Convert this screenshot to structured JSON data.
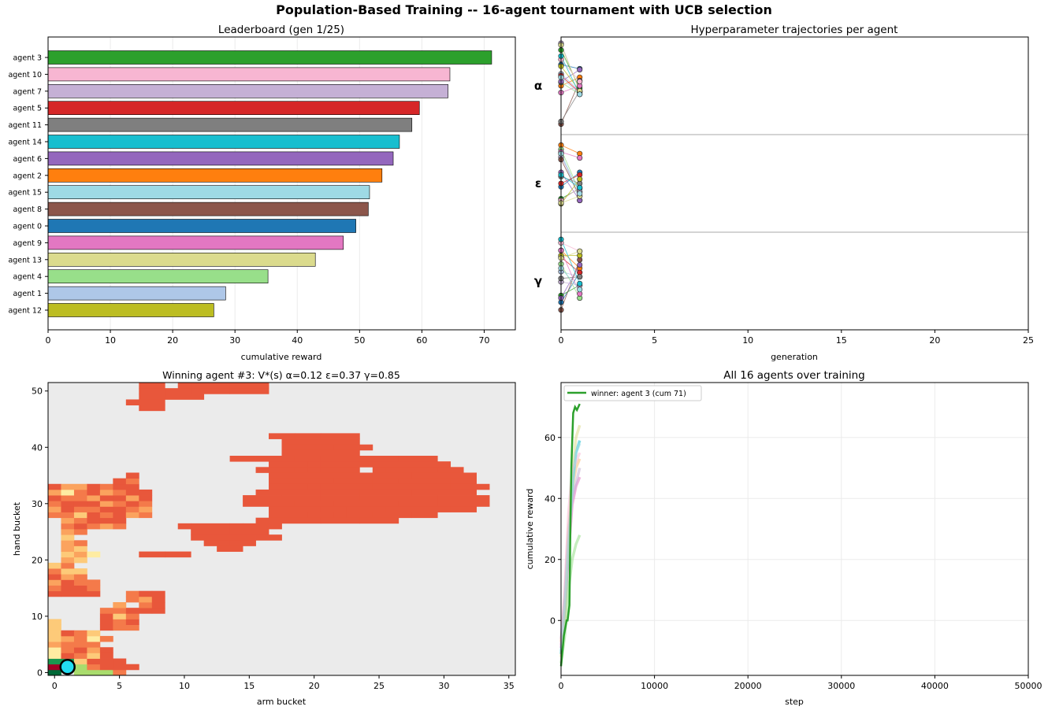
{
  "figure": {
    "suptitle": "Population-Based Training -- 16-agent tournament with UCB selection"
  },
  "palette": {
    "tab20": [
      "#1f77b4",
      "#aec7e8",
      "#ff7f0e",
      "#ffbb78",
      "#2ca02c",
      "#98df8a",
      "#d62728",
      "#ff9896",
      "#9467bd",
      "#c5b0d5",
      "#8c564b",
      "#c49c94",
      "#e377c2",
      "#f7b6d2",
      "#7f7f7f",
      "#c7c7c7",
      "#bcbd22",
      "#dbdb8d",
      "#17becf",
      "#9edae5"
    ],
    "agent_colors": {
      "agent 0": "#1f77b4",
      "agent 1": "#aec7e8",
      "agent 2": "#ff7f0e",
      "agent 3": "#2ca02c",
      "agent 4": "#98df8a",
      "agent 5": "#d62728",
      "agent 6": "#9467bd",
      "agent 7": "#c5b0d5",
      "agent 8": "#8c564b",
      "agent 9": "#e377c2",
      "agent 10": "#f7b6d2",
      "agent 11": "#7f7f7f",
      "agent 12": "#bcbd22",
      "agent 13": "#dbdb8d",
      "agent 14": "#17becf",
      "agent 15": "#9edae5"
    },
    "heat_bg": "#ebebeb",
    "heat_levels": [
      "#a50026",
      "#e8573b",
      "#f47a4a",
      "#fba35e",
      "#fdca79",
      "#feeca2",
      "#d3ec87",
      "#a9dc6d",
      "#1a9850",
      "#006837"
    ],
    "marker_fill": "#22ddf2"
  },
  "chart_data": [
    {
      "type": "bar",
      "orientation": "horizontal",
      "title": "Leaderboard  (gen 1/25)",
      "xlabel": "cumulative reward",
      "xlim": [
        0,
        75
      ],
      "xticks": [
        0,
        10,
        20,
        30,
        40,
        50,
        60,
        70
      ],
      "grid": "x",
      "categories": [
        "agent 3",
        "agent 10",
        "agent 7",
        "agent 5",
        "agent 11",
        "agent 14",
        "agent 6",
        "agent 2",
        "agent 15",
        "agent 8",
        "agent 0",
        "agent 9",
        "agent 13",
        "agent 4",
        "agent 1",
        "agent 12"
      ],
      "values": [
        71.2,
        64.5,
        64.2,
        59.6,
        58.4,
        56.4,
        55.4,
        53.6,
        51.6,
        51.4,
        49.4,
        47.4,
        42.9,
        35.3,
        28.5,
        26.6
      ]
    },
    {
      "type": "scatter",
      "title": "Hyperparameter trajectories per agent",
      "xlabel": "generation",
      "xlim": [
        0,
        25
      ],
      "xticks": [
        0,
        5,
        10,
        15,
        20,
        25
      ],
      "bands": [
        {
          "label": "α",
          "gen0": [
            0.25,
            0.36,
            0.5,
            0.08,
            0.46,
            0.38,
            0.45,
            0.0,
            0.95,
            0.58,
            0.19,
            0.92,
            0.27,
            0.02,
            0.15,
            0.4
          ],
          "gen1": [
            0.3,
            0.56,
            0.4,
            0.53,
            0.6,
            0.58,
            0.31,
            0.57,
            0.44,
            0.5,
            0.45,
            0.56,
            0.56,
            0.56,
            0.6,
            0.6
          ]
        },
        {
          "label": "ε",
          "gen0": [
            0.54,
            0.15,
            0.05,
            0.68,
            0.1,
            0.5,
            0.37,
            0.19,
            0.22,
            0.13,
            0.7,
            0.42,
            0.74,
            0.73,
            0.4,
            0.15
          ],
          "gen1": [
            0.37,
            0.7,
            0.15,
            0.56,
            0.6,
            0.4,
            0.7,
            0.6,
            0.65,
            0.2,
            0.55,
            0.5,
            0.45,
            0.65,
            0.55,
            0.62
          ]
        },
        {
          "label": "γ",
          "gen0": [
            0.75,
            0.39,
            0.14,
            0.67,
            0.3,
            0.22,
            0.7,
            0.51,
            0.84,
            0.14,
            0.05,
            0.47,
            0.2,
            0.23,
            0.01,
            0.35
          ],
          "gen1": [
            0.4,
            0.45,
            0.35,
            0.55,
            0.7,
            0.4,
            0.31,
            0.55,
            0.25,
            0.65,
            0.15,
            0.45,
            0.2,
            0.15,
            0.53,
            0.6
          ]
        }
      ]
    },
    {
      "type": "heatmap",
      "title": "Winning agent #3: V*(s)   α=0.12 ε=0.37 γ=0.85",
      "xlabel": "arm bucket",
      "ylabel": "hand bucket",
      "xticks": [
        0,
        5,
        10,
        15,
        20,
        25,
        30,
        35
      ],
      "yticks": [
        0,
        10,
        20,
        30,
        40,
        50
      ],
      "grid_cols": 36,
      "grid_rows": 52,
      "marker": {
        "x": 1,
        "y": 1
      },
      "level_rows": [
        "0:1:9,2:5:7,5:6:2",
        "0:1:0,1:3:7,3:4:2,4:5:1,5:7:1",
        "0:2:8,2:3:4,3:5:1,5:6:1",
        "0:1:5,1:2:1,2:3:2,3:4:4,4:5:1",
        "0:1:5,1:2:2,2:3:1,3:4:3,4:5:1",
        "0:1:3,1:3:2,3:4:2",
        "0:1:4,1:2:3,2:3:2,3:4:5,4:5:2",
        "0:1:4,1:2:1,2:3:2,3:4:4",
        "0:1:4,4:5:1,5:7:2",
        "0:1:4,4:5:1,5:6:2,6:7:1",
        "4:5:1,5:6:4,6:7:2",
        "4:5:2,5:6:2,6:7:1,7:8:1,8:9:1",
        "5:6:3,7:8:2,8:9:1",
        "6:7:2,7:8:3,8:9:1",
        "0:1:1,1:4:1,6:7:2,7:8:1,8:9:1",
        "0:1:2,1:3:1,3:4:2",
        "0:1:3,1:2:1,2:4:2",
        "0:1:1,1:2:3,2:3:2",
        "0:1:2,1:3:4",
        "0:1:4,1:2:2",
        "1:2:3,2:3:4",
        "1:2:4,2:3:3,3:4:5",
        "1:2:3,2:3:4",
        "1:2:3,2:3:2",
        "1:2:4",
        "1:2:3,2:3:2",
        "1:2:2,2:3:1,3:4:2,4:5:3,5:6:2",
        "1:2:3,2:3:2,3:4:1,4:6:1",
        "0:1:2,1:2:2,2:3:4,3:4:1,4:5:2,5:6:1,6:7:3,7:8:2",
        "0:1:3,1:2:1,2:3:2,3:4:2,4:5:1,5:6:1,6:7:2,7:8:3",
        "0:1:2,1:2:1,2:3:1,3:4:1,4:5:3,5:6:2,6:7:1,7:8:2",
        "0:1:1,1:3:2,3:4:3,4:5:1,5:6:1,6:7:3,7:8:1",
        "0:1:3,1:2:5,2:3:2,3:4:1,4:5:3,5:6:2,6:7:1,7:8:1",
        "0:1:1,1:3:3,3:4:1,4:5:2,5:7:1",
        "5:6:1,6:7:2",
        "6:7:1"
      ],
      "plateau_runs": [
        "17:19:1,19:21:1,21:24:1",
        "18:24:1",
        "18:22:1,22:24:1,24:25:1",
        "18:24:1",
        "14:16:1,16:17:1,17:18:1,18:19:1,19:21:1,21:27:1,27:30:1",
        "17:20:1,20:21:1,21:25:1,25:31:1",
        "16:17:1,17:19:1,19:20:1,20:21:1,21:24:1,25:26:1,26:30:1,30:32:1",
        "17:25:1,25:28:1,28:33:1",
        "17:22:1,22:25:1,25:27:1,27:31:1,31:33:1",
        "17:20:1,20:21:1,21:25:1,25:31:1,31:34:1",
        "16:18:1,18:21:1,21:24:1,24:28:1,28:33:1",
        "15:18:1,18:21:1,21:24:1,24:30:1,30:34:1",
        "15:19:1,19:22:1,22:27:1,27:30:1,30:34:1",
        "17:21:1,21:23:1,23:26:1,26:31:1,31:33:1",
        "17:20:1,20:22:1,22:23:1,23:25:1,25:28:1,28:30:1",
        "16:18:1,18:21:1,21:24:1,24:27:1",
        "10:11:1,11:14:1,14:15:1,15:17:1,17:18:1",
        "11:14:1,14:17:1",
        "11:16:1,16:18:1",
        "12:14:1,14:16:1",
        "13:15:1",
        "7:9:1,9:11:1"
      ],
      "plateau_top_rows": [
        "7:9:1",
        "6:7:1,7:9:1",
        "7:9:1,9:12:1",
        "7:9:1,9:11:1,11:14:1,14:17:1",
        "7:9:1,10:11:1,11:14:1,14:17:1"
      ]
    },
    {
      "type": "line",
      "title": "All 16 agents over training",
      "xlabel": "step",
      "ylabel": "cumulative reward",
      "xlim": [
        0,
        50000
      ],
      "ylim": [
        -18,
        78
      ],
      "xticks": [
        0,
        10000,
        20000,
        30000,
        40000,
        50000
      ],
      "yticks": [
        0,
        20,
        40,
        60
      ],
      "legend": {
        "label": "winner: agent 3 (cum 71)",
        "placement": "top-left"
      },
      "series": [
        {
          "name": "winner: agent 3 (cum 71)",
          "x": [
            0,
            300,
            600,
            700,
            900,
            1000,
            1100,
            1300,
            1500,
            1700,
            2000
          ],
          "y": [
            -15,
            -5,
            0,
            0,
            5,
            30,
            50,
            68,
            70,
            69,
            71
          ]
        },
        {
          "x": [
            0,
            400,
            800,
            1200,
            1600,
            2000
          ],
          "y": [
            -10,
            5,
            25,
            42,
            55,
            58
          ]
        },
        {
          "x": [
            0,
            400,
            800,
            1200,
            1600,
            2000
          ],
          "y": [
            -8,
            10,
            35,
            50,
            52,
            55
          ]
        },
        {
          "x": [
            0,
            400,
            800,
            1200,
            1600,
            2000
          ],
          "y": [
            -12,
            0,
            28,
            48,
            60,
            64
          ]
        },
        {
          "x": [
            0,
            400,
            800,
            1200,
            1600,
            2000
          ],
          "y": [
            -6,
            8,
            30,
            40,
            45,
            50
          ]
        },
        {
          "x": [
            0,
            400,
            800,
            1200,
            1600,
            2000
          ],
          "y": [
            -14,
            -5,
            10,
            20,
            25,
            28
          ]
        },
        {
          "x": [
            0,
            400,
            800,
            1200,
            1600,
            2000
          ],
          "y": [
            -9,
            3,
            22,
            38,
            44,
            47
          ]
        },
        {
          "x": [
            0,
            400,
            800,
            1200,
            1600,
            2000
          ],
          "y": [
            -11,
            2,
            24,
            45,
            55,
            59
          ]
        },
        {
          "x": [
            0,
            400,
            800,
            1200,
            1600,
            2000
          ],
          "y": [
            -7,
            6,
            26,
            43,
            50,
            53
          ]
        }
      ]
    }
  ]
}
